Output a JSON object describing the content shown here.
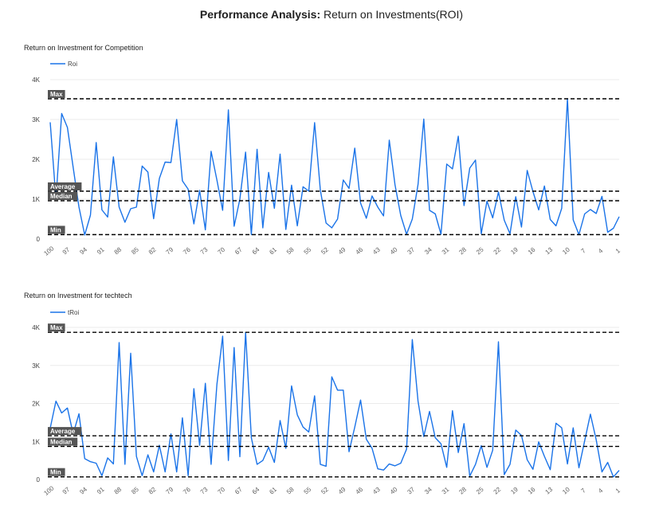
{
  "page": {
    "title_bold": "Performance Analysis:",
    "title_rest": " Return on Investments(ROI)"
  },
  "colors": {
    "series": "#1a73e8",
    "reference": "#000000",
    "label_bg": "#555555",
    "grid": "#ebebeb"
  },
  "chart_data": [
    {
      "type": "line",
      "title": "Return on Investment for Competition",
      "legend": "Roi",
      "legend_position": "top-left",
      "grid": true,
      "ylim": [
        0,
        4000
      ],
      "yticks": [
        "0",
        "1K",
        "2K",
        "3K",
        "4K"
      ],
      "x_categories": [
        100,
        99,
        98,
        97,
        96,
        95,
        94,
        93,
        92,
        91,
        90,
        89,
        88,
        87,
        86,
        85,
        84,
        83,
        82,
        81,
        80,
        79,
        78,
        77,
        76,
        75,
        74,
        73,
        72,
        71,
        70,
        69,
        68,
        67,
        66,
        65,
        64,
        63,
        62,
        61,
        60,
        59,
        58,
        57,
        56,
        55,
        54,
        53,
        52,
        51,
        50,
        49,
        48,
        47,
        46,
        45,
        44,
        43,
        42,
        41,
        40,
        39,
        38,
        37,
        36,
        35,
        34,
        33,
        32,
        31,
        30,
        29,
        28,
        27,
        26,
        25,
        24,
        23,
        22,
        21,
        20,
        19,
        18,
        17,
        16,
        15,
        14,
        13,
        12,
        11,
        10,
        9,
        8,
        7,
        6,
        5,
        4,
        3,
        2,
        1
      ],
      "x_tick_labels": [
        "100",
        "97",
        "94",
        "91",
        "88",
        "85",
        "82",
        "79",
        "76",
        "73",
        "70",
        "67",
        "64",
        "61",
        "58",
        "55",
        "52",
        "49",
        "46",
        "43",
        "40",
        "37",
        "34",
        "31",
        "28",
        "25",
        "22",
        "19",
        "16",
        "13",
        "10",
        "7",
        "4",
        "1"
      ],
      "values": [
        2930,
        1000,
        3150,
        2800,
        1800,
        800,
        100,
        600,
        2420,
        730,
        550,
        2060,
        800,
        420,
        760,
        800,
        1830,
        1680,
        510,
        1520,
        1930,
        1920,
        3000,
        1460,
        1250,
        380,
        1220,
        230,
        2200,
        1480,
        720,
        3240,
        320,
        1000,
        2180,
        110,
        2250,
        280,
        1670,
        770,
        2130,
        240,
        1350,
        330,
        1310,
        1200,
        2920,
        1230,
        400,
        280,
        500,
        1480,
        1270,
        2280,
        900,
        520,
        1080,
        800,
        580,
        2480,
        1360,
        590,
        120,
        500,
        1370,
        3010,
        720,
        630,
        120,
        1880,
        1760,
        2580,
        840,
        1780,
        1980,
        130,
        950,
        530,
        1180,
        470,
        130,
        1060,
        300,
        1720,
        1190,
        730,
        1330,
        490,
        330,
        770,
        3520,
        480,
        110,
        630,
        740,
        640,
        1070,
        170,
        270,
        560
      ],
      "reference_lines": [
        {
          "label": "Max",
          "value": 3520
        },
        {
          "label": "Average",
          "value": 1200
        },
        {
          "label": "Median",
          "value": 960
        },
        {
          "label": "Min",
          "value": 110
        }
      ]
    },
    {
      "type": "line",
      "title": "Return on Investment for techtech",
      "legend": "tRoi",
      "legend_position": "top-left",
      "grid": true,
      "ylim": [
        0,
        4000
      ],
      "yticks": [
        "0",
        "1K",
        "2K",
        "3K",
        "4K"
      ],
      "x_categories": [
        100,
        99,
        98,
        97,
        96,
        95,
        94,
        93,
        92,
        91,
        90,
        89,
        88,
        87,
        86,
        85,
        84,
        83,
        82,
        81,
        80,
        79,
        78,
        77,
        76,
        75,
        74,
        73,
        72,
        71,
        70,
        69,
        68,
        67,
        66,
        65,
        64,
        63,
        62,
        61,
        60,
        59,
        58,
        57,
        56,
        55,
        54,
        53,
        52,
        51,
        50,
        49,
        48,
        47,
        46,
        45,
        44,
        43,
        42,
        41,
        40,
        39,
        38,
        37,
        36,
        35,
        34,
        33,
        32,
        31,
        30,
        29,
        28,
        27,
        26,
        25,
        24,
        23,
        22,
        21,
        20,
        19,
        18,
        17,
        16,
        15,
        14,
        13,
        12,
        11,
        10,
        9,
        8,
        7,
        6,
        5,
        4,
        3,
        2,
        1
      ],
      "x_tick_labels": [
        "100",
        "97",
        "94",
        "91",
        "88",
        "85",
        "82",
        "79",
        "76",
        "73",
        "70",
        "67",
        "64",
        "61",
        "58",
        "55",
        "52",
        "49",
        "46",
        "43",
        "40",
        "37",
        "34",
        "31",
        "28",
        "25",
        "22",
        "19",
        "16",
        "13",
        "10",
        "7",
        "4",
        "1"
      ],
      "values": [
        1350,
        2060,
        1750,
        1880,
        1200,
        1730,
        550,
        470,
        430,
        100,
        570,
        410,
        3600,
        400,
        3320,
        610,
        100,
        650,
        200,
        900,
        200,
        1200,
        200,
        1620,
        100,
        2390,
        900,
        2530,
        400,
        2500,
        3770,
        500,
        3470,
        600,
        3870,
        1100,
        400,
        500,
        850,
        450,
        1550,
        820,
        2460,
        1700,
        1380,
        1250,
        2200,
        400,
        350,
        2700,
        2350,
        2350,
        730,
        1380,
        2090,
        1060,
        820,
        280,
        250,
        410,
        360,
        430,
        800,
        3680,
        2060,
        1130,
        1790,
        1100,
        940,
        320,
        1810,
        710,
        1470,
        90,
        400,
        890,
        320,
        770,
        3620,
        130,
        400,
        1300,
        1160,
        520,
        270,
        990,
        610,
        260,
        1480,
        1360,
        410,
        1360,
        310,
        1020,
        1720,
        1040,
        200,
        450,
        70,
        240
      ],
      "reference_lines": [
        {
          "label": "Max",
          "value": 3870
        },
        {
          "label": "Average",
          "value": 1150
        },
        {
          "label": "Median",
          "value": 870
        },
        {
          "label": "Min",
          "value": 70
        }
      ]
    }
  ]
}
